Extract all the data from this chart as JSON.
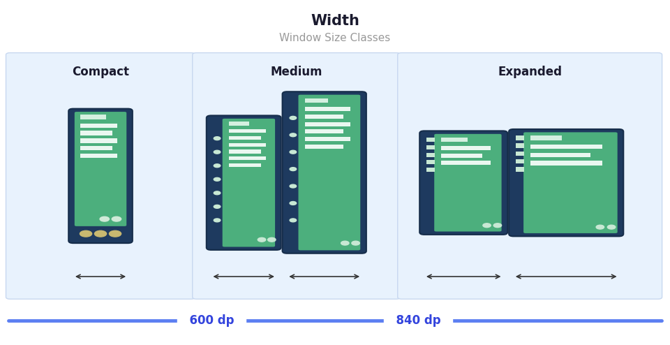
{
  "title": "Width",
  "subtitle": "Window Size Classes",
  "title_color": "#1a1a2e",
  "subtitle_color": "#999999",
  "bg_color": "#ffffff",
  "panel_bg": "#e8f2fd",
  "panel_border": "#c8d8f0",
  "sections": [
    "Compact",
    "Medium",
    "Expanded"
  ],
  "device_dark": "#1e3a5f",
  "device_green": "#4caf7d",
  "bar_light": "#d4f0e0",
  "bar_white": "#eaf7f0",
  "bottom_line_color": "#5c7ff2",
  "dp_text_color": "#3344dd",
  "arrow_color": "#333333"
}
